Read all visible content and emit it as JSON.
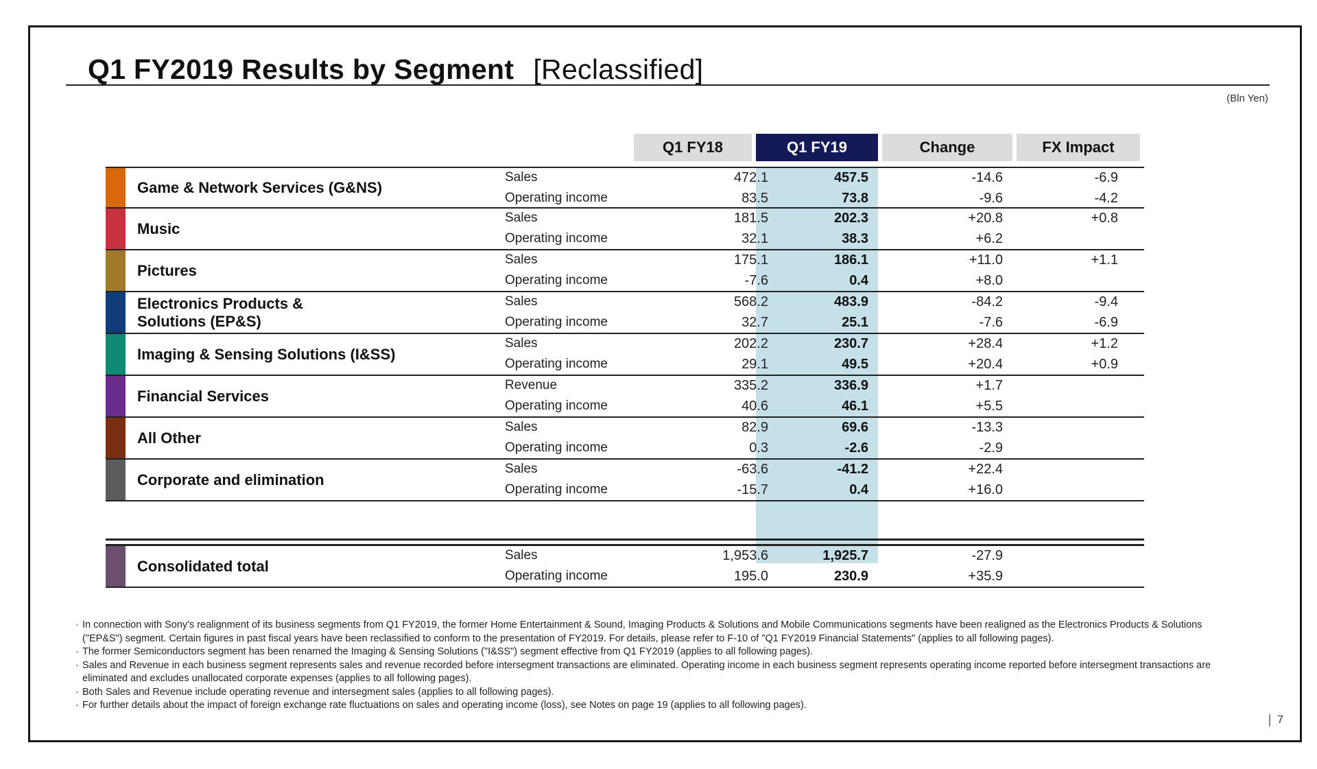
{
  "title": {
    "main": "Q1 FY2019  Results by Segment",
    "bracket": "[Reclassified]"
  },
  "unit": "(Bln Yen)",
  "columns": [
    "Q1 FY18",
    "Q1 FY19",
    "Change",
    "FX Impact"
  ],
  "colors": {
    "highlight_header": "#141a57",
    "highlight_column": "#c6e0e9"
  },
  "segments": [
    {
      "name": "Game & Network Services (G&NS)",
      "color": "#d9670c",
      "rows": [
        {
          "metric": "Sales",
          "fy18": "472.1",
          "fy19": "457.5",
          "change": "-14.6",
          "fx": "-6.9"
        },
        {
          "metric": "Operating income",
          "fy18": "83.5",
          "fy19": "73.8",
          "change": "-9.6",
          "fx": "-4.2"
        }
      ]
    },
    {
      "name": "Music",
      "color": "#c8323f",
      "rows": [
        {
          "metric": "Sales",
          "fy18": "181.5",
          "fy19": "202.3",
          "change": "+20.8",
          "fx": "+0.8"
        },
        {
          "metric": "Operating income",
          "fy18": "32.1",
          "fy19": "38.3",
          "change": "+6.2",
          "fx": ""
        }
      ]
    },
    {
      "name": "Pictures",
      "color": "#a07a2a",
      "rows": [
        {
          "metric": "Sales",
          "fy18": "175.1",
          "fy19": "186.1",
          "change": "+11.0",
          "fx": "+1.1"
        },
        {
          "metric": "Operating income",
          "fy18": "-7.6",
          "fy19": "0.4",
          "change": "+8.0",
          "fx": ""
        }
      ]
    },
    {
      "name": "Electronics Products & Solutions (EP&S)",
      "color": "#0e3d7a",
      "rows": [
        {
          "metric": "Sales",
          "fy18": "568.2",
          "fy19": "483.9",
          "change": "-84.2",
          "fx": "-9.4"
        },
        {
          "metric": "Operating income",
          "fy18": "32.7",
          "fy19": "25.1",
          "change": "-7.6",
          "fx": "-6.9"
        }
      ]
    },
    {
      "name": "Imaging & Sensing Solutions (I&SS)",
      "color": "#0f8a76",
      "rows": [
        {
          "metric": "Sales",
          "fy18": "202.2",
          "fy19": "230.7",
          "change": "+28.4",
          "fx": "+1.2"
        },
        {
          "metric": "Operating income",
          "fy18": "29.1",
          "fy19": "49.5",
          "change": "+20.4",
          "fx": "+0.9"
        }
      ]
    },
    {
      "name": "Financial Services",
      "color": "#6a2c8a",
      "rows": [
        {
          "metric": "Revenue",
          "fy18": "335.2",
          "fy19": "336.9",
          "change": "+1.7",
          "fx": ""
        },
        {
          "metric": "Operating income",
          "fy18": "40.6",
          "fy19": "46.1",
          "change": "+5.5",
          "fx": ""
        }
      ]
    },
    {
      "name": "All Other",
      "color": "#7a2f10",
      "rows": [
        {
          "metric": "Sales",
          "fy18": "82.9",
          "fy19": "69.6",
          "change": "-13.3",
          "fx": ""
        },
        {
          "metric": "Operating income",
          "fy18": "0.3",
          "fy19": "-2.6",
          "change": "-2.9",
          "fx": ""
        }
      ]
    },
    {
      "name": "Corporate and elimination",
      "color": "#5c5c5c",
      "rows": [
        {
          "metric": "Sales",
          "fy18": "-63.6",
          "fy19": "-41.2",
          "change": "+22.4",
          "fx": ""
        },
        {
          "metric": "Operating income",
          "fy18": "-15.7",
          "fy19": "0.4",
          "change": "+16.0",
          "fx": ""
        }
      ]
    }
  ],
  "total": {
    "name": "Consolidated total",
    "color": "#6b4f6e",
    "rows": [
      {
        "metric": "Sales",
        "fy18": "1,953.6",
        "fy19": "1,925.7",
        "change": "-27.9",
        "fx": ""
      },
      {
        "metric": "Operating income",
        "fy18": "195.0",
        "fy19": "230.9",
        "change": "+35.9",
        "fx": ""
      }
    ]
  },
  "notes": [
    "In connection with Sony's realignment of its business segments from Q1 FY2019, the former Home Entertainment & Sound, Imaging Products & Solutions and Mobile Communications segments have been realigned as the Electronics Products & Solutions (\"EP&S\") segment. Certain figures in past fiscal years have been reclassified to conform to the presentation of FY2019. For details, please refer to F-10 of \"Q1 FY2019 Financial Statements\" (applies to all following pages).",
    "The former Semiconductors segment has been renamed the Imaging & Sensing Solutions (\"I&SS\") segment effective from Q1 FY2019 (applies to all following pages).",
    "Sales and Revenue in each business segment represents sales and revenue recorded before intersegment transactions are eliminated. Operating income in each business segment represents operating income reported before intersegment transactions are eliminated and excludes unallocated corporate expenses (applies to all following pages).",
    "Both Sales and Revenue include operating revenue and intersegment sales (applies to all following pages).",
    "For further details about the impact of foreign exchange rate fluctuations on sales and operating income (loss), see Notes on page 19 (applies to all following pages)."
  ],
  "page_number": "7"
}
